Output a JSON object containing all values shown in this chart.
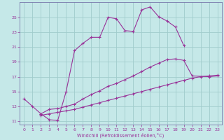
{
  "xlabel": "Windchill (Refroidissement éolien,°C)",
  "bg_color": "#c5e8e8",
  "grid_color": "#a0cccc",
  "line_color": "#993399",
  "spine_color": "#7777aa",
  "xlim": [
    -0.5,
    23.5
  ],
  "ylim": [
    10.5,
    27.0
  ],
  "xticks": [
    0,
    1,
    2,
    3,
    4,
    5,
    6,
    7,
    8,
    9,
    10,
    11,
    12,
    13,
    14,
    15,
    16,
    17,
    18,
    19,
    20,
    21,
    22,
    23
  ],
  "yticks": [
    11,
    13,
    15,
    17,
    19,
    21,
    23,
    25
  ],
  "line1_x": [
    0,
    1,
    2,
    3,
    4,
    5,
    6,
    7,
    8,
    9,
    10,
    11,
    12,
    13,
    14,
    15,
    16,
    17,
    18,
    19
  ],
  "line1_y": [
    14.0,
    13.0,
    12.0,
    11.2,
    11.1,
    15.0,
    20.5,
    21.5,
    22.3,
    22.3,
    25.0,
    24.8,
    23.2,
    23.1,
    26.0,
    26.4,
    25.1,
    24.5,
    23.7,
    21.2
  ],
  "line2_x": [
    2,
    3,
    4,
    5,
    6,
    7,
    8,
    9,
    10,
    11,
    12,
    13,
    14,
    15,
    16,
    17,
    18,
    19,
    20,
    22,
    23
  ],
  "line2_y": [
    12.0,
    12.6,
    12.7,
    13.0,
    13.3,
    14.0,
    14.6,
    15.1,
    15.7,
    16.1,
    16.6,
    17.1,
    17.7,
    18.3,
    18.8,
    19.3,
    19.4,
    19.2,
    17.1,
    17.0,
    17.1
  ],
  "line3_x": [
    2,
    3,
    4,
    5,
    6,
    7,
    8,
    9,
    10,
    11,
    12,
    13,
    14,
    15,
    16,
    17,
    18,
    19,
    20,
    21,
    22,
    23
  ],
  "line3_y": [
    11.8,
    12.0,
    12.2,
    12.4,
    12.6,
    12.9,
    13.2,
    13.5,
    13.8,
    14.1,
    14.4,
    14.7,
    15.0,
    15.3,
    15.6,
    15.9,
    16.2,
    16.5,
    16.8,
    17.0,
    17.1,
    17.2
  ]
}
